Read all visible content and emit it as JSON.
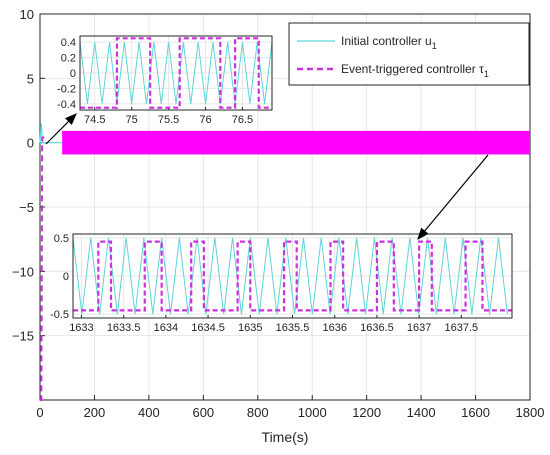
{
  "colors": {
    "controller_u": "#5fd4d8",
    "controller_tau": "#cc2fe0",
    "main_band": "#ff00ff",
    "axis": "#262626",
    "grid": "#e6e6e6",
    "arrow": "#000000"
  },
  "chart_data": [
    {
      "type": "line",
      "panel": "main",
      "title": "",
      "xlabel": "Time(s)",
      "ylabel": "",
      "xlim": [
        0,
        1800
      ],
      "ylim": [
        -20,
        10
      ],
      "x_ticks": [
        "0",
        "200",
        "400",
        "600",
        "800",
        "1000",
        "1200",
        "1400",
        "1600",
        "1800"
      ],
      "y_ticks": [
        "10",
        "5",
        "0",
        "−5",
        "−10",
        "−15"
      ],
      "grid": true,
      "legend_position": "top-right",
      "legend": [
        {
          "name": "Initial controller u",
          "subscript": "1",
          "style": "solid"
        },
        {
          "name": "Event-triggered controller τ",
          "subscript": "1",
          "style": "dashed"
        }
      ],
      "series": [
        {
          "name": "Initial controller u1",
          "initial_transient": [
            [
              0,
              0
            ],
            [
              4,
              1.5
            ],
            [
              10,
              0
            ],
            [
              30,
              0
            ]
          ],
          "steady_band": [
            -0.45,
            0.45
          ],
          "steady_from": 30
        },
        {
          "name": "Event-triggered controller τ1",
          "initial_transient": [
            [
              0,
              -20
            ],
            [
              5,
              -20
            ],
            [
              8,
              0.4
            ],
            [
              30,
              0.4
            ]
          ],
          "steady_band": [
            -0.45,
            0.45
          ],
          "steady_from": 30
        }
      ]
    },
    {
      "type": "line",
      "panel": "inset-top",
      "xlim": [
        74.3,
        76.9
      ],
      "ylim": [
        -0.48,
        0.48
      ],
      "x_ticks": [
        "74.5",
        "75",
        "75.5",
        "76",
        "76.5"
      ],
      "x_tick_values": [
        74.5,
        75,
        75.5,
        76,
        76.5
      ],
      "y_ticks": [
        "0.4",
        "0.2",
        "0",
        "-0.2",
        "-0.4"
      ],
      "y_tick_values": [
        0.4,
        0.2,
        0,
        -0.2,
        -0.4
      ],
      "grid": true,
      "u1_period": 0.2,
      "u1_amplitude": 0.4,
      "tau1_edges": [
        74.8,
        75.25,
        75.65,
        76.2,
        76.4,
        76.72
      ],
      "tau1_start": -0.45,
      "tau1_amplitude": 0.45
    },
    {
      "type": "line",
      "panel": "inset-bottom",
      "xlim": [
        1632.9,
        1638.1
      ],
      "ylim": [
        -0.55,
        0.55
      ],
      "x_ticks": [
        "1633",
        "1633.5",
        "1634",
        "1634.5",
        "1635",
        "1635.5",
        "1636",
        "1636.5",
        "1637",
        "1637.5"
      ],
      "x_tick_values": [
        1633,
        1633.5,
        1634,
        1634.5,
        1635,
        1635.5,
        1636,
        1636.5,
        1637,
        1637.5
      ],
      "y_ticks": [
        "0.5",
        "0",
        "-0.5"
      ],
      "y_tick_values": [
        0.5,
        0,
        -0.5
      ],
      "grid": true,
      "u1_period": 0.21,
      "u1_amplitude": 0.5,
      "tau1_edges": [
        1633.2,
        1633.35,
        1633.75,
        1633.95,
        1634.3,
        1634.45,
        1634.85,
        1635.0,
        1635.4,
        1635.55,
        1635.95,
        1636.1,
        1636.5,
        1636.7,
        1637.0,
        1637.15,
        1637.55,
        1637.75
      ],
      "tau1_start": -0.45,
      "tau1_amplitude": 0.45
    }
  ]
}
